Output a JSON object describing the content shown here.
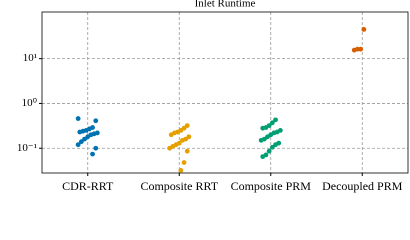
{
  "chart_data": {
    "type": "strip",
    "title": "Inlet Runtime",
    "categories": [
      "CDR-RRT",
      "Composite RRT",
      "Composite PRM",
      "Decoupled PRM"
    ],
    "series": [
      {
        "color": "#0072b2",
        "values": [
          0.46,
          0.41,
          0.29,
          0.27,
          0.25,
          0.24,
          0.23,
          0.22,
          0.21,
          0.2,
          0.18,
          0.16,
          0.14,
          0.12,
          0.1,
          0.074
        ]
      },
      {
        "color": "#e69f00",
        "values": [
          0.32,
          0.28,
          0.25,
          0.23,
          0.22,
          0.2,
          0.18,
          0.16,
          0.15,
          0.13,
          0.12,
          0.11,
          0.1,
          0.086,
          0.048,
          0.032
        ]
      },
      {
        "color": "#009e73",
        "values": [
          0.43,
          0.37,
          0.32,
          0.29,
          0.28,
          0.25,
          0.23,
          0.22,
          0.2,
          0.18,
          0.16,
          0.15,
          0.13,
          0.12,
          0.105,
          0.086,
          0.071,
          0.065
        ]
      },
      {
        "color": "#d55e00",
        "values": [
          45,
          16.3,
          16.3,
          15.5
        ]
      }
    ],
    "log_y": true,
    "ylim": [
      0.028,
      110
    ],
    "yticks": [
      {
        "value": 0.1,
        "label": "10⁻¹"
      },
      {
        "value": 1,
        "label": "10⁰"
      },
      {
        "value": 10,
        "label": "10¹"
      }
    ],
    "grid": true
  }
}
